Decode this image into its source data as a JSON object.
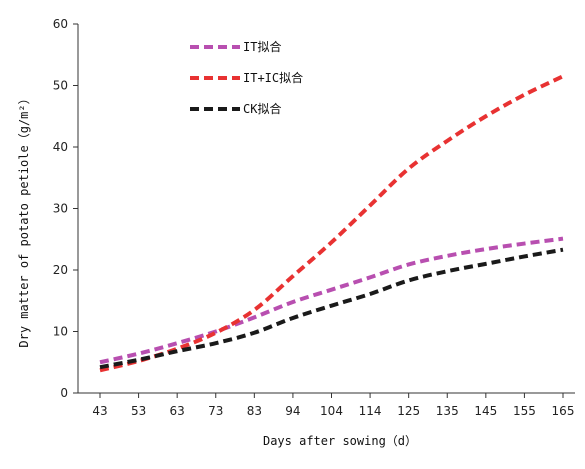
{
  "chart_data": {
    "type": "line",
    "xlabel": "Days after sowing（d）",
    "ylabel": "Dry matter of potato petiole（g/m²）",
    "x": [
      43,
      53,
      63,
      73,
      83,
      94,
      104,
      114,
      125,
      135,
      145,
      155,
      165
    ],
    "xlim": [
      43,
      165
    ],
    "ylim": [
      0,
      60
    ],
    "y_ticks": [
      0,
      10,
      20,
      30,
      40,
      50,
      60
    ],
    "legend_position": "top-left",
    "grid": false,
    "series": [
      {
        "name": "IT拟合",
        "color": "#b84fb0",
        "values": [
          5.0,
          6.4,
          8.1,
          10.0,
          12.3,
          14.8,
          16.8,
          18.8,
          20.9,
          22.3,
          23.4,
          24.3,
          25.1
        ]
      },
      {
        "name": "IT+IC拟合",
        "color": "#e83232",
        "values": [
          3.7,
          5.2,
          7.2,
          9.8,
          13.5,
          19.0,
          24.5,
          30.5,
          36.5,
          41.0,
          45.0,
          48.5,
          51.5
        ]
      },
      {
        "name": "CK拟合",
        "color": "#1a1a1a",
        "values": [
          4.2,
          5.4,
          6.8,
          8.1,
          9.8,
          12.2,
          14.2,
          16.1,
          18.3,
          19.8,
          21.0,
          22.2,
          23.3
        ]
      }
    ]
  }
}
